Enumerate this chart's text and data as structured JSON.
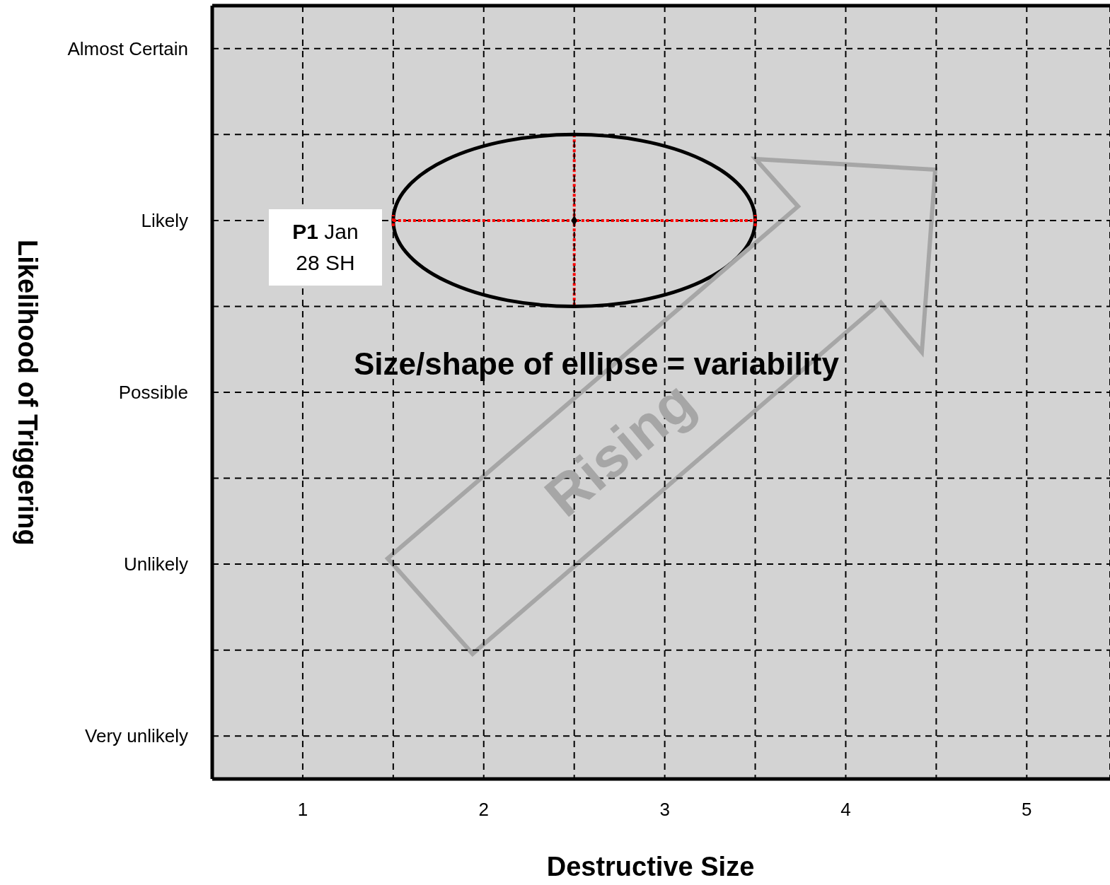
{
  "chart_data": {
    "type": "scatter",
    "orientation": "horizontal",
    "xlabel": "Destructive Size",
    "ylabel": "Likelihood of Triggering",
    "categories": [
      "Almost Certain",
      null,
      "Likely",
      null,
      "Possible",
      null,
      "Unlikely",
      null,
      "Very unlikely"
    ],
    "series": [
      {
        "color": "#000000",
        "values": [
          null,
          null,
          2.5,
          null,
          null,
          null,
          null,
          null,
          null
        ],
        "errors": [
          null,
          null,
          1,
          null,
          null,
          null,
          null,
          null,
          null
        ]
      }
    ],
    "xlim": [
      0.5,
      5.46
    ],
    "xticks": [
      1,
      {
        "value": 1.5,
        "label": null
      },
      2,
      {
        "value": 2.5,
        "label": null
      },
      3,
      {
        "value": 3.5,
        "label": null
      },
      4,
      {
        "value": 4.5,
        "label": null
      },
      5
    ],
    "grid": true,
    "marker": "diamond",
    "annotations": [
      "P1 Jan 28 SH",
      "Size/shape of ellipse = variability",
      "Rising"
    ]
  }
}
